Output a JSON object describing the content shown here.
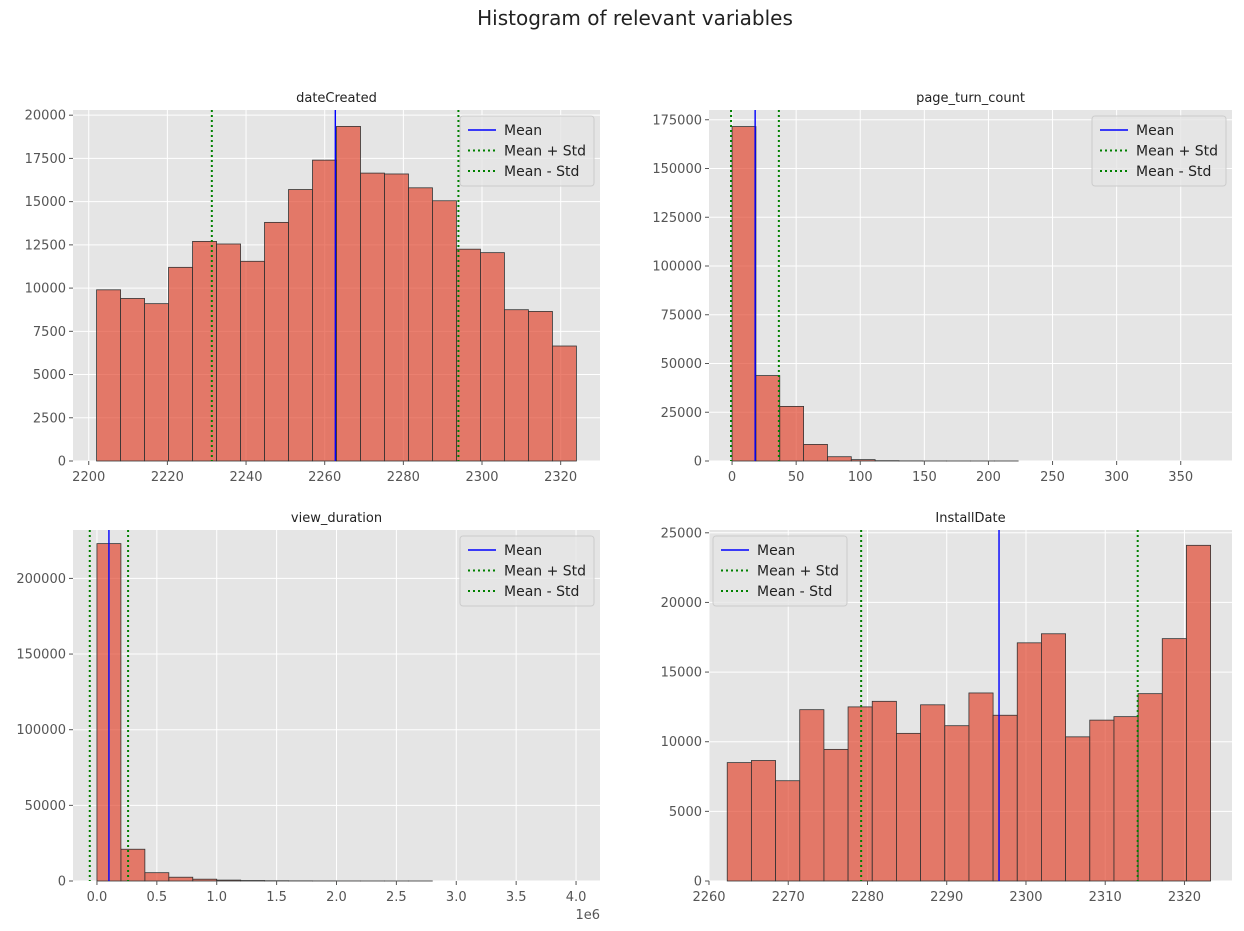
{
  "figure": {
    "title": "Histogram of relevant variables",
    "colors": {
      "panel_bg": "#E5E5E5",
      "grid": "#FFFFFF",
      "bar_fill": "#E24A33",
      "bar_edge": "#333333",
      "mean_line": "#0000FF",
      "std_line": "#008000",
      "tick_text": "#555555"
    }
  },
  "chart_data": [
    {
      "type": "bar",
      "title": "dateCreated",
      "xlim": [
        2196,
        2330
      ],
      "ylim": [
        0,
        20300
      ],
      "xticks": [
        2200,
        2220,
        2240,
        2260,
        2280,
        2300,
        2320
      ],
      "xtick_labels": [
        "2200",
        "2220",
        "2240",
        "2260",
        "2280",
        "2300",
        "2320"
      ],
      "yticks": [
        0,
        2500,
        5000,
        7500,
        10000,
        12500,
        15000,
        17500,
        20000
      ],
      "ytick_labels": [
        "0",
        "2500",
        "5000",
        "7500",
        "10000",
        "12500",
        "15000",
        "17500",
        "20000"
      ],
      "bin_start": 2202,
      "bin_end": 2324,
      "values": [
        9900,
        9400,
        9100,
        11200,
        12700,
        12550,
        11550,
        13800,
        15700,
        17400,
        19350,
        16650,
        16600,
        15800,
        15050,
        12250,
        12050,
        8750,
        8650,
        6650
      ],
      "mean": 2262.7,
      "mean_plus_std": 2294.0,
      "mean_minus_std": 2231.3,
      "legend": [
        "Mean",
        "Mean + Std",
        "Mean - Std"
      ],
      "legend_loc": "upper right"
    },
    {
      "type": "bar",
      "title": "page_turn_count",
      "xlim": [
        -18,
        390
      ],
      "ylim": [
        0,
        180000
      ],
      "xticks": [
        0,
        50,
        100,
        150,
        200,
        250,
        300,
        350
      ],
      "xtick_labels": [
        "0",
        "50",
        "100",
        "150",
        "200",
        "250",
        "300",
        "350"
      ],
      "yticks": [
        0,
        25000,
        50000,
        75000,
        100000,
        125000,
        150000,
        175000
      ],
      "ytick_labels": [
        "0",
        "25000",
        "50000",
        "75000",
        "100000",
        "125000",
        "150000",
        "175000"
      ],
      "bin_start": 0,
      "bin_end": 372,
      "values": [
        171500,
        43800,
        28000,
        8500,
        2200,
        700,
        150,
        50,
        20,
        10,
        5,
        5,
        0,
        0,
        0,
        0,
        0,
        0,
        0,
        0
      ],
      "mean": 18.0,
      "mean_plus_std": 36.5,
      "mean_minus_std": -0.8,
      "legend": [
        "Mean",
        "Mean + Std",
        "Mean - Std"
      ],
      "legend_loc": "upper right"
    },
    {
      "type": "bar",
      "title": "view_duration",
      "xlim": [
        -200000,
        4200000
      ],
      "ylim": [
        0,
        232000
      ],
      "xticks": [
        0,
        500000,
        1000000,
        1500000,
        2000000,
        2500000,
        3000000,
        3500000,
        4000000
      ],
      "xtick_labels": [
        "0.0",
        "0.5",
        "1.0",
        "1.5",
        "2.0",
        "2.5",
        "3.0",
        "3.5",
        "4.0"
      ],
      "x_offset_label": "1e6",
      "yticks": [
        0,
        50000,
        100000,
        150000,
        200000
      ],
      "ytick_labels": [
        "0",
        "50000",
        "100000",
        "150000",
        "200000"
      ],
      "bin_start": 0,
      "bin_end": 4000000,
      "values": [
        223000,
        21000,
        5500,
        2500,
        1200,
        600,
        300,
        150,
        80,
        40,
        20,
        10,
        5,
        5,
        0,
        0,
        0,
        0,
        0,
        0
      ],
      "mean": 100000,
      "mean_plus_std": 260000,
      "mean_minus_std": -60000,
      "legend": [
        "Mean",
        "Mean + Std",
        "Mean - Std"
      ],
      "legend_loc": "upper right"
    },
    {
      "type": "bar",
      "title": "InstallDate",
      "xlim": [
        2260,
        2326
      ],
      "ylim": [
        0,
        25200
      ],
      "xticks": [
        2260,
        2270,
        2280,
        2290,
        2300,
        2310,
        2320
      ],
      "xtick_labels": [
        "2260",
        "2270",
        "2280",
        "2290",
        "2300",
        "2310",
        "2320"
      ],
      "yticks": [
        0,
        5000,
        10000,
        15000,
        20000,
        25000
      ],
      "ytick_labels": [
        "0",
        "5000",
        "10000",
        "15000",
        "20000",
        "25000"
      ],
      "bin_start": 2262.3,
      "bin_end": 2323.3,
      "values": [
        8500,
        8650,
        7200,
        12300,
        9450,
        12500,
        12900,
        10600,
        12650,
        11150,
        13500,
        11900,
        17100,
        17750,
        10350,
        11550,
        11800,
        13450,
        17400,
        24100
      ],
      "mean": 2296.6,
      "mean_plus_std": 2314.1,
      "mean_minus_std": 2279.2,
      "legend": [
        "Mean",
        "Mean + Std",
        "Mean - Std"
      ],
      "legend_loc": "upper left"
    }
  ]
}
